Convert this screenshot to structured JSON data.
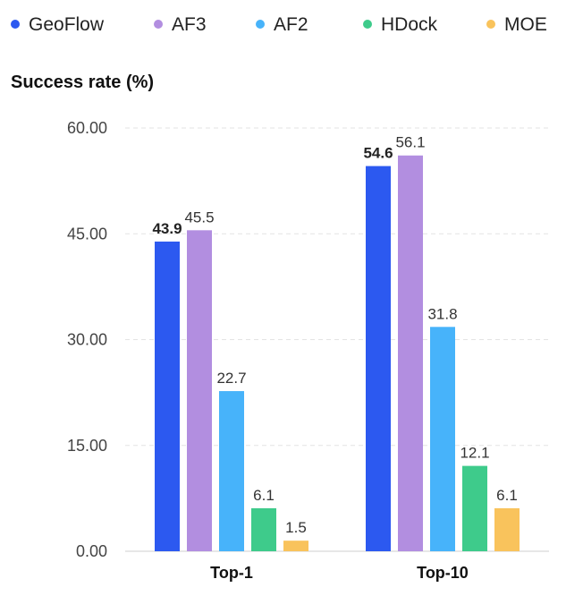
{
  "chart_data": {
    "type": "bar",
    "ylabel": "Success rate (%)",
    "categories": [
      "Top-1",
      "Top-10"
    ],
    "ylim": [
      0,
      60
    ],
    "yticks": [
      "0.00",
      "15.00",
      "30.00",
      "45.00",
      "60.00"
    ],
    "grid": true,
    "legend_position": "top",
    "series": [
      {
        "name": "GeoFlow",
        "color": "#2c59f0",
        "values": [
          43.9,
          54.6
        ],
        "labels": [
          "43.9",
          "54.6"
        ],
        "bold_labels": true
      },
      {
        "name": "AF3",
        "color": "#b28ee0",
        "values": [
          45.5,
          56.1
        ],
        "labels": [
          "45.5",
          "56.1"
        ],
        "bold_labels": false
      },
      {
        "name": "AF2",
        "color": "#47b3fa",
        "values": [
          22.7,
          31.8
        ],
        "labels": [
          "22.7",
          "31.8"
        ],
        "bold_labels": false
      },
      {
        "name": "HDock",
        "color": "#3ecb8b",
        "values": [
          6.1,
          12.1
        ],
        "labels": [
          "6.1",
          "12.1"
        ],
        "bold_labels": false
      },
      {
        "name": "MOE",
        "color": "#f9c35c",
        "values": [
          1.5,
          6.1
        ],
        "labels": [
          "1.5",
          "6.1"
        ],
        "bold_labels": false
      }
    ]
  }
}
